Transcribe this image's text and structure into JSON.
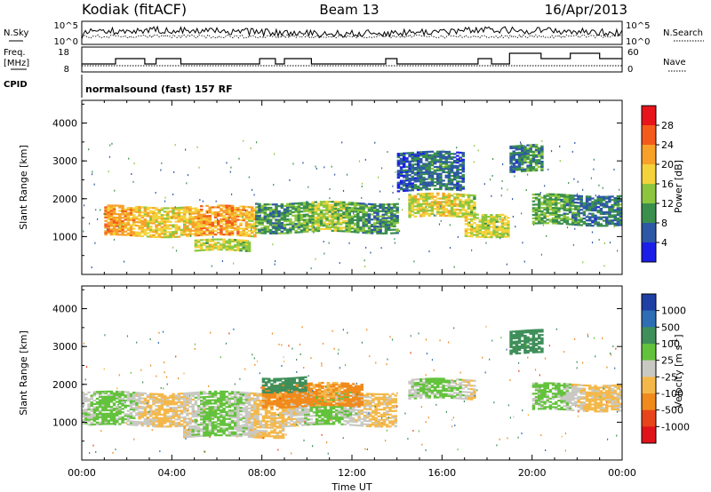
{
  "header": {
    "station": "Kodiak (fitACF)",
    "beam": "Beam 13",
    "date": "16/Apr/2013"
  },
  "top_panels": {
    "nsky_label": "N.Sky",
    "nsearch_label": "N.Search",
    "freq_label_1": "Freq.",
    "freq_label_2": "[MHz]",
    "nave_label": "Nave",
    "cpid_label": "CPID",
    "noise_left_ticks": [
      "10^5",
      "10^0"
    ],
    "noise_right_ticks": [
      "10^5",
      "10^0"
    ],
    "freq_ticks": [
      "18",
      "8"
    ],
    "nave_ticks": [
      "60",
      "0"
    ],
    "cpid_text": "normalsound (fast) 157 RF"
  },
  "chart_data": [
    {
      "type": "heatmap",
      "panel": "power",
      "ylabel": "Slant Range [km]",
      "ylim": [
        0,
        4600
      ],
      "y_ticks": [
        1000,
        2000,
        3000,
        4000
      ],
      "x_ticks": [
        "00:00",
        "04:00",
        "08:00",
        "12:00",
        "16:00",
        "20:00",
        "00:00"
      ],
      "colorbar": {
        "label": "Power [dB]",
        "tick_labels": [
          "28",
          "24",
          "20",
          "16",
          "12",
          "8",
          "4"
        ],
        "colors": [
          "#e8141b",
          "#f35a1c",
          "#f7a128",
          "#f4d23c",
          "#8cc63f",
          "#3a8f4d",
          "#2d58a5",
          "#1a1ee8"
        ]
      },
      "echo_regions": [
        {
          "t_start": 1.0,
          "t_end": 7.7,
          "range_min": 1000,
          "range_max": 1800,
          "level_db": 20
        },
        {
          "t_start": 7.7,
          "t_end": 14.0,
          "range_min": 1100,
          "range_max": 1900,
          "level_db": 12
        },
        {
          "t_start": 5.0,
          "t_end": 7.5,
          "range_min": 600,
          "range_max": 900,
          "level_db": 14
        },
        {
          "t_start": 14.5,
          "t_end": 17.5,
          "range_min": 1500,
          "range_max": 2100,
          "level_db": 16
        },
        {
          "t_start": 17.0,
          "t_end": 19.0,
          "range_min": 1000,
          "range_max": 1600,
          "level_db": 18
        },
        {
          "t_start": 14.0,
          "t_end": 17.0,
          "range_min": 2200,
          "range_max": 3200,
          "level_db": 6
        },
        {
          "t_start": 19.0,
          "t_end": 20.5,
          "range_min": 2700,
          "range_max": 3400,
          "level_db": 8
        },
        {
          "t_start": 20.0,
          "t_end": 24.0,
          "range_min": 1300,
          "range_max": 2100,
          "level_db": 10
        }
      ]
    },
    {
      "type": "heatmap",
      "panel": "velocity",
      "xlabel": "Time UT",
      "ylabel": "Slant Range [km]",
      "ylim": [
        0,
        4600
      ],
      "y_ticks": [
        1000,
        2000,
        3000,
        4000
      ],
      "x_ticks": [
        "00:00",
        "04:00",
        "08:00",
        "12:00",
        "16:00",
        "20:00",
        "00:00"
      ],
      "colorbar": {
        "label": "Velocity [m s-1]",
        "label_main": "Velocity [m s",
        "label_sup": "-1",
        "label_end": "]",
        "tick_labels": [
          "1000",
          "500",
          "100",
          "25",
          "-25",
          "-100",
          "-500",
          "-1000"
        ],
        "colors": [
          "#1f3fa5",
          "#2e6eb5",
          "#3f8f5a",
          "#63c23c",
          "#c9c9c3",
          "#f4b84a",
          "#f08a1c",
          "#e8441b",
          "#e0131b"
        ]
      },
      "echo_regions": [
        {
          "t_start": 0.0,
          "t_end": 14.0,
          "range_min": 900,
          "range_max": 1800,
          "velocity": 0
        },
        {
          "t_start": 4.5,
          "t_end": 9.0,
          "range_min": 600,
          "range_max": 900,
          "velocity": 0
        },
        {
          "t_start": 8.0,
          "t_end": 12.5,
          "range_min": 1400,
          "range_max": 2000,
          "velocity": -150
        },
        {
          "t_start": 8.0,
          "t_end": 10.0,
          "range_min": 1800,
          "range_max": 2200,
          "velocity": 200
        },
        {
          "t_start": 14.5,
          "t_end": 17.5,
          "range_min": 1600,
          "range_max": 2100,
          "velocity": 0
        },
        {
          "t_start": 19.0,
          "t_end": 20.5,
          "range_min": 2800,
          "range_max": 3400,
          "velocity": 400
        },
        {
          "t_start": 20.0,
          "t_end": 24.0,
          "range_min": 1300,
          "range_max": 2000,
          "velocity": 0
        }
      ]
    }
  ]
}
